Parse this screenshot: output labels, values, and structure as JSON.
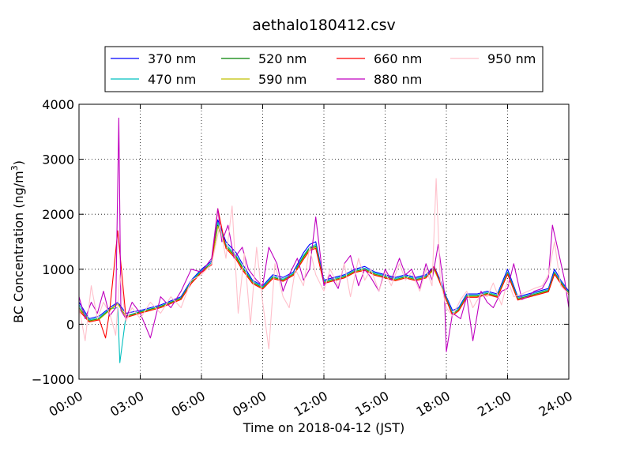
{
  "chart_data": {
    "type": "line",
    "title": "aethalo180412.csv",
    "xlabel": "Time on 2018-04-12 (JST)",
    "ylabel_main": "BC Concentration (ng/m",
    "ylabel_sup": "3",
    "ylabel_end": ")",
    "xlim": [
      0,
      24
    ],
    "ylim": [
      -1000,
      4000
    ],
    "grid": true,
    "legend_placement": "top-center",
    "x_ticks": [
      0,
      3,
      6,
      9,
      12,
      15,
      18,
      21,
      24
    ],
    "x_tick_labels": [
      "00:00",
      "03:00",
      "06:00",
      "09:00",
      "12:00",
      "15:00",
      "18:00",
      "21:00",
      "24:00"
    ],
    "y_ticks": [
      -1000,
      0,
      1000,
      2000,
      3000,
      4000
    ],
    "y_tick_labels": [
      "−1000",
      "0",
      "1000",
      "2000",
      "3000",
      "4000"
    ],
    "series": [
      {
        "name": "370 nm",
        "color": "#0000ff",
        "x": [
          0,
          0.5,
          1,
          1.5,
          1.9,
          2.3,
          3,
          4,
          5,
          5.5,
          6,
          6.5,
          6.8,
          7.2,
          7.7,
          8,
          8.5,
          9,
          9.5,
          10,
          10.5,
          11,
          11.3,
          11.6,
          12,
          12.5,
          13,
          13.5,
          14,
          14.5,
          15,
          15.5,
          16,
          16.5,
          17,
          17.4,
          17.7,
          18,
          18.3,
          18.6,
          19,
          19.5,
          20,
          20.5,
          21,
          21.5,
          22,
          22.5,
          23,
          23.3,
          23.6,
          24
        ],
        "values": [
          400,
          100,
          150,
          300,
          400,
          200,
          250,
          350,
          500,
          800,
          1000,
          1150,
          1900,
          1500,
          1300,
          1100,
          800,
          700,
          900,
          850,
          950,
          1300,
          1450,
          1500,
          800,
          850,
          900,
          1000,
          1050,
          950,
          900,
          850,
          900,
          850,
          900,
          1050,
          800,
          500,
          250,
          300,
          550,
          550,
          600,
          550,
          1000,
          500,
          550,
          600,
          650,
          1000,
          800,
          600
        ]
      },
      {
        "name": "470 nm",
        "color": "#00bfbf",
        "x": [
          0,
          0.5,
          1,
          1.5,
          1.9,
          2.0,
          2.3,
          3,
          4,
          5,
          5.5,
          6,
          6.5,
          6.8,
          7.2,
          7.7,
          8,
          8.5,
          9,
          9.5,
          10,
          10.5,
          11,
          11.3,
          11.6,
          12,
          12.5,
          13,
          13.5,
          14,
          14.5,
          15,
          15.5,
          16,
          16.5,
          17,
          17.4,
          17.7,
          18,
          18.3,
          18.6,
          19,
          19.5,
          20,
          20.5,
          21,
          21.5,
          22,
          22.5,
          23,
          23.3,
          23.6,
          24
        ],
        "values": [
          350,
          80,
          120,
          280,
          300,
          -700,
          150,
          230,
          330,
          480,
          780,
          980,
          1120,
          1850,
          1450,
          1250,
          1050,
          780,
          680,
          870,
          820,
          930,
          1250,
          1400,
          1450,
          780,
          830,
          880,
          980,
          1020,
          930,
          880,
          830,
          880,
          830,
          880,
          1020,
          780,
          480,
          200,
          280,
          530,
          530,
          580,
          530,
          950,
          480,
          530,
          580,
          630,
          950,
          780,
          580
        ]
      },
      {
        "name": "520 nm",
        "color": "#008000",
        "x": [
          0,
          0.5,
          1,
          1.5,
          1.9,
          2.3,
          3,
          4,
          5,
          5.5,
          6,
          6.5,
          6.8,
          7.2,
          7.7,
          8,
          8.5,
          9,
          9.5,
          10,
          10.5,
          11,
          11.3,
          11.6,
          12,
          12.5,
          13,
          13.5,
          14,
          14.5,
          15,
          15.5,
          16,
          16.5,
          17,
          17.4,
          17.7,
          18,
          18.3,
          18.6,
          19,
          19.5,
          20,
          20.5,
          21,
          21.5,
          22,
          22.5,
          23,
          23.3,
          23.6,
          24
        ],
        "values": [
          300,
          60,
          100,
          260,
          380,
          140,
          220,
          320,
          470,
          760,
          960,
          1100,
          1800,
          1420,
          1220,
          1030,
          760,
          660,
          850,
          800,
          910,
          1220,
          1380,
          1420,
          760,
          810,
          860,
          960,
          1000,
          910,
          860,
          810,
          860,
          810,
          860,
          1000,
          760,
          460,
          180,
          260,
          510,
          510,
          560,
          510,
          930,
          460,
          510,
          560,
          610,
          930,
          760,
          560
        ]
      },
      {
        "name": "590 nm",
        "color": "#bfbf00",
        "x": [
          0,
          0.5,
          1,
          1.5,
          1.9,
          2.3,
          3,
          4,
          5,
          5.5,
          6,
          6.5,
          6.8,
          7.2,
          7.7,
          8,
          8.5,
          9,
          9.5,
          10,
          10.5,
          11,
          11.3,
          11.6,
          12,
          12.5,
          13,
          13.5,
          14,
          14.5,
          15,
          15.5,
          16,
          16.5,
          17,
          17.4,
          17.7,
          18,
          18.3,
          18.6,
          19,
          19.5,
          20,
          20.5,
          21,
          21.5,
          22,
          22.5,
          23,
          23.3,
          23.6,
          24
        ],
        "values": [
          280,
          50,
          90,
          250,
          370,
          130,
          210,
          310,
          460,
          750,
          950,
          1090,
          1780,
          1400,
          1200,
          1010,
          750,
          650,
          840,
          790,
          900,
          1200,
          1360,
          1400,
          750,
          800,
          850,
          950,
          990,
          900,
          850,
          800,
          850,
          800,
          850,
          990,
          750,
          450,
          170,
          250,
          500,
          500,
          550,
          500,
          920,
          450,
          500,
          550,
          600,
          920,
          750,
          550
        ]
      },
      {
        "name": "660 nm",
        "color": "#ff0000",
        "x": [
          0,
          0.5,
          1,
          1.3,
          1.5,
          1.9,
          2.3,
          3,
          4,
          5,
          5.5,
          6,
          6.5,
          6.8,
          7.2,
          7.7,
          8,
          8.5,
          9,
          9.5,
          10,
          10.5,
          11,
          11.3,
          11.6,
          12,
          12.5,
          13,
          13.5,
          14,
          14.5,
          15,
          15.5,
          16,
          16.5,
          17,
          17.4,
          17.7,
          18,
          18.3,
          18.6,
          19,
          19.5,
          20,
          20.5,
          21,
          21.5,
          22,
          22.5,
          23,
          23.3,
          23.6,
          24
        ],
        "values": [
          250,
          40,
          80,
          -250,
          240,
          1700,
          120,
          200,
          300,
          450,
          740,
          940,
          1080,
          2100,
          1380,
          1180,
          990,
          740,
          640,
          830,
          780,
          890,
          1180,
          1340,
          1380,
          740,
          790,
          840,
          940,
          980,
          890,
          840,
          790,
          840,
          790,
          840,
          1050,
          740,
          440,
          160,
          240,
          490,
          490,
          540,
          490,
          910,
          440,
          490,
          540,
          590,
          910,
          740,
          540
        ]
      },
      {
        "name": "880 nm",
        "color": "#bf00bf",
        "x": [
          0,
          0.3,
          0.6,
          0.9,
          1.2,
          1.5,
          1.8,
          1.95,
          2.05,
          2.3,
          2.6,
          3,
          3.5,
          4,
          4.5,
          5,
          5.5,
          6,
          6.5,
          6.8,
          7,
          7.3,
          7.6,
          8,
          8.3,
          8.7,
          9,
          9.3,
          9.7,
          10,
          10.3,
          10.7,
          11,
          11.3,
          11.6,
          12,
          12.3,
          12.7,
          13,
          13.3,
          13.7,
          14,
          14.3,
          14.7,
          15,
          15.3,
          15.7,
          16,
          16.3,
          16.7,
          17,
          17.3,
          17.6,
          17.9,
          18,
          18.3,
          18.7,
          19,
          19.3,
          19.7,
          20,
          20.3,
          20.7,
          21,
          21.3,
          21.7,
          22,
          22.3,
          22.7,
          23,
          23.2,
          23.5,
          23.8,
          24
        ],
        "values": [
          500,
          100,
          400,
          200,
          600,
          150,
          300,
          3750,
          250,
          100,
          400,
          200,
          -250,
          500,
          300,
          600,
          1000,
          950,
          1200,
          2100,
          1500,
          1800,
          1200,
          1400,
          1000,
          800,
          700,
          1400,
          1100,
          600,
          900,
          1200,
          800,
          1000,
          1950,
          700,
          900,
          650,
          1100,
          1250,
          700,
          1000,
          850,
          600,
          1000,
          800,
          1200,
          900,
          1000,
          650,
          1100,
          800,
          1450,
          600,
          -500,
          200,
          100,
          500,
          -300,
          600,
          400,
          300,
          600,
          650,
          1100,
          450,
          500,
          600,
          650,
          850,
          1800,
          1300,
          800,
          300
        ]
      },
      {
        "name": "950 nm",
        "color": "#ffc0cb",
        "x": [
          0,
          0.3,
          0.6,
          0.9,
          1.2,
          1.5,
          1.8,
          2.0,
          2.3,
          2.6,
          3,
          3.5,
          4,
          4.5,
          5,
          5.5,
          6,
          6.5,
          6.9,
          7.2,
          7.5,
          7.8,
          8.1,
          8.4,
          8.7,
          9,
          9.3,
          9.6,
          10,
          10.3,
          10.6,
          11,
          11.3,
          11.6,
          12,
          12.3,
          12.7,
          13,
          13.3,
          13.7,
          14,
          14.3,
          14.7,
          15,
          15.3,
          15.7,
          16,
          16.3,
          16.7,
          17,
          17.3,
          17.5,
          17.7,
          18,
          18.3,
          18.7,
          19,
          19.3,
          19.7,
          20,
          20.3,
          20.7,
          21,
          21.3,
          21.7,
          22,
          22.3,
          22.7,
          23,
          23.3,
          23.6,
          24
        ],
        "values": [
          300,
          -300,
          700,
          100,
          400,
          200,
          -200,
          900,
          50,
          300,
          100,
          400,
          200,
          500,
          300,
          800,
          900,
          1100,
          1800,
          1200,
          2150,
          200,
          1300,
          0,
          1400,
          400,
          -450,
          1100,
          500,
          300,
          1000,
          700,
          1400,
          900,
          600,
          1000,
          700,
          1100,
          500,
          1200,
          800,
          1000,
          600,
          950,
          700,
          1100,
          800,
          950,
          600,
          1000,
          700,
          2650,
          800,
          300,
          150,
          450,
          600,
          300,
          550,
          500,
          750,
          350,
          800,
          500,
          550,
          600,
          650,
          700,
          900,
          1500,
          700,
          550
        ]
      }
    ]
  }
}
